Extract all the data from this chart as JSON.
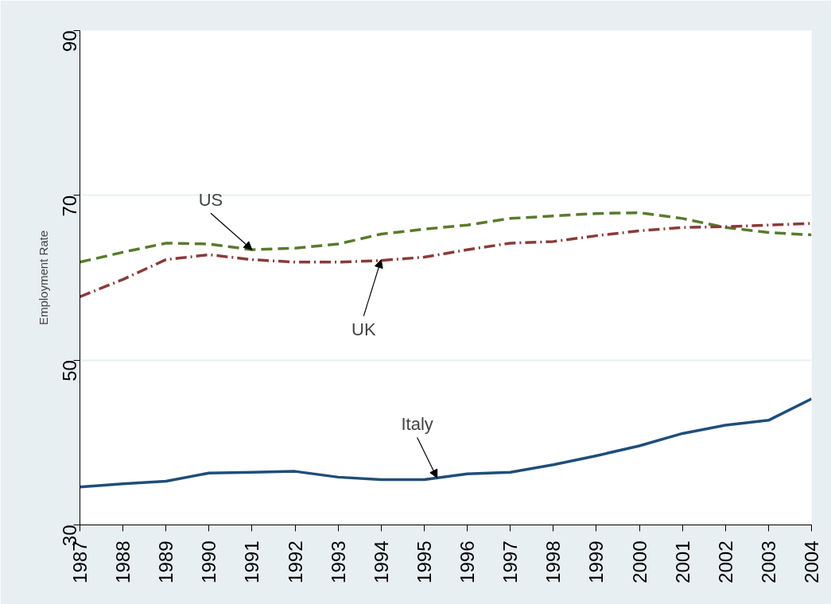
{
  "chart_data": {
    "type": "line",
    "ylabel": "Employment Rate",
    "x": [
      1987,
      1988,
      1989,
      1990,
      1991,
      1992,
      1993,
      1994,
      1995,
      1996,
      1997,
      1998,
      1999,
      2000,
      2001,
      2002,
      2003,
      2004
    ],
    "xlim": [
      1987,
      2004
    ],
    "xticks": [
      1987,
      1988,
      1989,
      1990,
      1991,
      1992,
      1993,
      1994,
      1995,
      1996,
      1997,
      1998,
      1999,
      2000,
      2001,
      2002,
      2003,
      2004
    ],
    "ylim": [
      30,
      90
    ],
    "yticks": [
      30,
      50,
      70,
      90
    ],
    "grid": "y",
    "marker": "none",
    "series": [
      {
        "color": "#5a7a2e",
        "line_style": "dashed",
        "values": [
          61.9,
          63.1,
          64.2,
          64.1,
          63.4,
          63.6,
          64.1,
          65.3,
          65.9,
          66.4,
          67.2,
          67.5,
          67.8,
          67.9,
          67.2,
          66.1,
          65.5,
          65.2
        ]
      },
      {
        "color": "#8b3a3a",
        "line_style": "dashdot",
        "values": [
          57.7,
          59.8,
          62.2,
          62.8,
          62.2,
          61.9,
          61.9,
          62.1,
          62.5,
          63.4,
          64.2,
          64.4,
          65.1,
          65.7,
          66.1,
          66.2,
          66.4,
          66.6
        ]
      },
      {
        "color": "#1f4e79",
        "line_style": "solid",
        "values": [
          34.6,
          35.0,
          35.3,
          36.3,
          36.4,
          36.5,
          35.8,
          35.5,
          35.5,
          36.2,
          36.4,
          37.3,
          38.4,
          39.6,
          41.1,
          42.1,
          42.7,
          45.3
        ]
      }
    ],
    "annotations": [
      {
        "text": "US",
        "x": 1991,
        "y": 63.4
      },
      {
        "text": "UK",
        "x": 1994,
        "y": 62.2
      },
      {
        "text": "Italy",
        "x": 1995.3,
        "y": 35.7
      }
    ]
  }
}
